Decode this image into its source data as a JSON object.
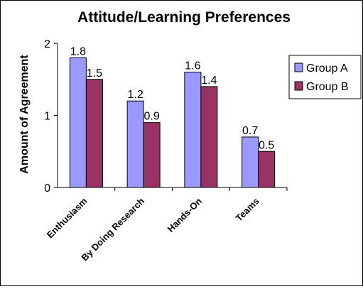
{
  "chart_data": {
    "type": "bar",
    "title": "Attitude/Learning Preferences",
    "xlabel": "",
    "ylabel": "Amount of Agreement",
    "ylim": [
      0,
      2
    ],
    "yticks": [
      "0",
      "1",
      "2"
    ],
    "categories": [
      "Enthusiasm",
      "By Doing Research",
      "Hands-On",
      "Teams"
    ],
    "series": [
      {
        "name": "Group A",
        "values": [
          1.8,
          1.2,
          1.6,
          0.7
        ],
        "labels": [
          "1.8",
          "1.2",
          "1.6",
          "0.7"
        ],
        "color": "#9999ff"
      },
      {
        "name": "Group B",
        "values": [
          1.5,
          0.9,
          1.4,
          0.5
        ],
        "labels": [
          "1.5",
          "0.9",
          "1.4",
          "0.5"
        ],
        "color": "#993366"
      }
    ],
    "grid": false,
    "legend": "right"
  }
}
